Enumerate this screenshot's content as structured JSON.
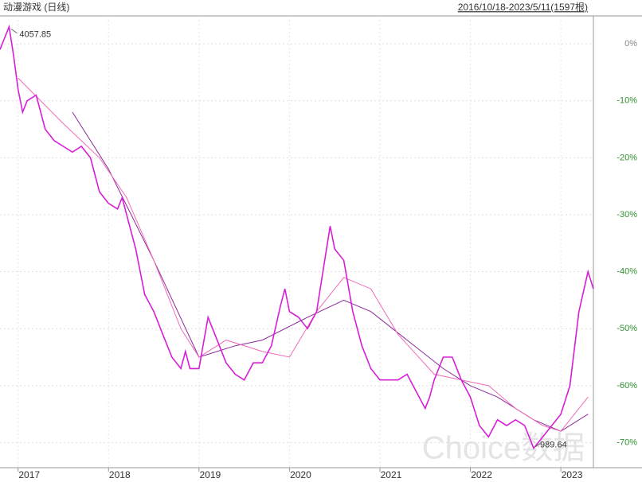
{
  "chart_data": {
    "type": "line",
    "title": "动漫游戏 (日线)",
    "subtitle": "2016/10/18-2023/5/11(1597根)",
    "watermark": "Choice数据",
    "annotations": {
      "max": "4057.85",
      "min": "989.64"
    },
    "xlim": [
      2016.8,
      2023.36
    ],
    "xticks": [
      2017,
      2018,
      2019,
      2020,
      2021,
      2022,
      2023
    ],
    "ylim": [
      -74.4,
      4.9
    ],
    "yticks": [
      {
        "value": 0,
        "label": "0%"
      },
      {
        "value": -10,
        "label": "-10%"
      },
      {
        "value": -20,
        "label": "-20%"
      },
      {
        "value": -30,
        "label": "-30%"
      },
      {
        "value": -40,
        "label": "-40%"
      },
      {
        "value": -50,
        "label": "-50%"
      },
      {
        "value": -60,
        "label": "-60%"
      },
      {
        "value": -70,
        "label": "-70%"
      }
    ],
    "grid": true,
    "series": [
      {
        "color": "#d61fd6",
        "x": [
          2016.8,
          2016.9,
          2016.95,
          2017.0,
          2017.05,
          2017.1,
          2017.2,
          2017.3,
          2017.4,
          2017.5,
          2017.6,
          2017.7,
          2017.8,
          2017.9,
          2018.0,
          2018.1,
          2018.15,
          2018.2,
          2018.3,
          2018.4,
          2018.5,
          2018.6,
          2018.7,
          2018.8,
          2018.85,
          2018.9,
          2019.0,
          2019.1,
          2019.15,
          2019.3,
          2019.4,
          2019.5,
          2019.6,
          2019.7,
          2019.8,
          2019.9,
          2019.95,
          2020.0,
          2020.1,
          2020.2,
          2020.3,
          2020.4,
          2020.45,
          2020.5,
          2020.6,
          2020.7,
          2020.8,
          2020.9,
          2021.0,
          2021.1,
          2021.2,
          2021.3,
          2021.4,
          2021.5,
          2021.55,
          2021.6,
          2021.7,
          2021.8,
          2021.9,
          2022.0,
          2022.1,
          2022.2,
          2022.3,
          2022.4,
          2022.5,
          2022.6,
          2022.7,
          2022.8,
          2022.9,
          2023.0,
          2023.1,
          2023.2,
          2023.3,
          2023.36
        ],
        "values": [
          -1,
          3,
          -2,
          -8,
          -12,
          -10,
          -9,
          -15,
          -17,
          -18,
          -19,
          -18,
          -20,
          -26,
          -28,
          -29,
          -27,
          -30,
          -36,
          -44,
          -47,
          -51,
          -55,
          -57,
          -54,
          -57,
          -57,
          -48,
          -50,
          -56,
          -58,
          -59,
          -56,
          -56,
          -53,
          -46,
          -43,
          -47,
          -48,
          -50,
          -47,
          -37,
          -32,
          -36,
          -38,
          -47,
          -53,
          -57,
          -59,
          -59,
          -59,
          -58,
          -61,
          -64,
          -62,
          -59,
          -55,
          -55,
          -59,
          -62,
          -67,
          -69,
          -66,
          -67,
          -66,
          -67,
          -71,
          -69,
          -67,
          -65,
          -60,
          -47,
          -40,
          -43
        ]
      },
      {
        "color": "#f06ab8",
        "x": [
          2017.0,
          2017.5,
          2017.9,
          2018.2,
          2018.5,
          2018.8,
          2019.0,
          2019.3,
          2019.7,
          2020.0,
          2020.3,
          2020.6,
          2020.9,
          2021.2,
          2021.6,
          2021.9,
          2022.2,
          2022.5,
          2022.8,
          2023.0,
          2023.3
        ],
        "values": [
          -6,
          -14,
          -20,
          -27,
          -38,
          -50,
          -55,
          -52,
          -54,
          -55,
          -47,
          -41,
          -43,
          -51,
          -58,
          -59,
          -60,
          -64,
          -67,
          -68,
          -62
        ]
      },
      {
        "color": "#8a2b9c",
        "x": [
          2017.6,
          2018.0,
          2018.5,
          2019.0,
          2019.4,
          2019.7,
          2020.2,
          2020.6,
          2020.9,
          2021.3,
          2021.7,
          2022.0,
          2022.3,
          2022.7,
          2023.0,
          2023.3
        ],
        "values": [
          -12,
          -22,
          -38,
          -55,
          -53,
          -52,
          -48,
          -45,
          -47,
          -52,
          -57,
          -60,
          -62,
          -66,
          -68,
          -65
        ]
      }
    ]
  }
}
